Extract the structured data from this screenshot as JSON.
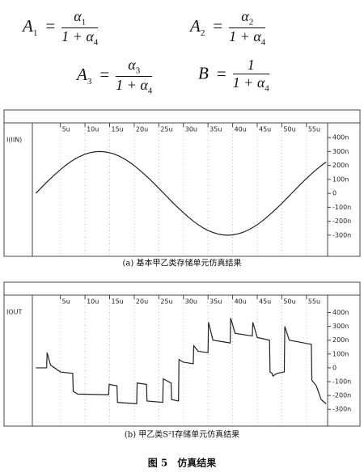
{
  "equations": [
    {
      "lhs": "A",
      "lhs_sub": "1",
      "relation": "=",
      "num": "α",
      "num_sub": "1",
      "den": "1 + α",
      "den_sub": "4"
    },
    {
      "lhs": "A",
      "lhs_sub": "2",
      "relation": "=",
      "num": "α",
      "num_sub": "2",
      "den": "1 + α",
      "den_sub": "4"
    },
    {
      "lhs": "A",
      "lhs_sub": "3",
      "relation": "=",
      "num": "α",
      "num_sub": "3",
      "den": "1 + α",
      "den_sub": "4"
    },
    {
      "lhs": "B",
      "relation": "=",
      "num": "1",
      "den": "1 + α",
      "den_sub": "4"
    }
  ],
  "chart_data": [
    {
      "type": "line",
      "caption": "(a) 基本甲乙类存储单元仿真结果",
      "x": [
        0,
        1,
        2,
        3,
        4,
        5,
        6,
        7,
        8,
        9,
        10,
        11,
        12,
        13,
        14,
        15,
        16,
        17,
        18,
        19,
        20,
        21,
        22,
        23,
        24,
        25,
        26,
        27,
        28,
        29,
        30,
        31,
        32,
        33,
        34,
        35,
        36,
        37,
        38,
        39,
        40,
        41,
        42,
        43,
        44,
        45,
        46,
        47,
        48,
        49,
        50,
        51,
        52,
        53,
        54,
        55,
        56,
        57,
        58,
        59
      ],
      "series": [
        {
          "name": "I(IIN)",
          "color": "#222222",
          "values": [
            0,
            36,
            72,
            106,
            139,
            170,
            199,
            225,
            247,
            266,
            281,
            291,
            298,
            300,
            298,
            291,
            281,
            266,
            247,
            225,
            199,
            170,
            139,
            106,
            72,
            36,
            0,
            -36,
            -72,
            -106,
            -139,
            -170,
            -199,
            -225,
            -247,
            -266,
            -281,
            -291,
            -298,
            -300,
            -298,
            -291,
            -281,
            -266,
            -247,
            -225,
            -199,
            -170,
            -139,
            -106,
            -72,
            -36,
            0,
            36,
            72,
            106,
            139,
            170,
            199,
            225
          ]
        }
      ],
      "xlim": [
        -0.7,
        59.3
      ],
      "xticks": [
        {
          "value": 5,
          "label": "5u"
        },
        {
          "value": 10,
          "label": "10u"
        },
        {
          "value": 15,
          "label": "15u"
        },
        {
          "value": 20,
          "label": "20u"
        },
        {
          "value": 25,
          "label": "25u"
        },
        {
          "value": 30,
          "label": "30u"
        },
        {
          "value": 35,
          "label": "35u"
        },
        {
          "value": 40,
          "label": "40u"
        },
        {
          "value": 45,
          "label": "45u"
        },
        {
          "value": 50,
          "label": "50u"
        },
        {
          "value": 55,
          "label": "55u"
        }
      ],
      "ylim": [
        -440,
        430
      ],
      "yticks": [
        {
          "value": 400,
          "label": "400n"
        },
        {
          "value": 300,
          "label": "300n"
        },
        {
          "value": 200,
          "label": "200n"
        },
        {
          "value": 100,
          "label": "100n"
        },
        0,
        {
          "value": -100,
          "label": "-100n"
        },
        {
          "value": -200,
          "label": "-200n"
        },
        {
          "value": -300,
          "label": "-300n"
        }
      ],
      "grid": true
    },
    {
      "type": "line",
      "caption": "(b) 甲乙类S²I存储单元仿真结果",
      "x": [
        0,
        2.2,
        2.3,
        3,
        5,
        7.5,
        7.6,
        8.5,
        14.8,
        14.9,
        16.5,
        16.6,
        20.5,
        20.6,
        22.5,
        22.6,
        25.8,
        25.9,
        27.5,
        27.6,
        29,
        29.1,
        30,
        32,
        32.1,
        33,
        35,
        35.1,
        36,
        39.5,
        39.6,
        40.5,
        44,
        44.1,
        45,
        47.5,
        47.6,
        48,
        48.2,
        49,
        50.5,
        50.6,
        51.5,
        56,
        56.1,
        57,
        58,
        59
      ],
      "series": [
        {
          "name": "IOUT",
          "color": "#222222",
          "values": [
            0,
            0,
            110,
            20,
            -30,
            -40,
            -170,
            -190,
            -195,
            -120,
            -130,
            -250,
            -260,
            -110,
            -120,
            -240,
            -250,
            -80,
            -110,
            -230,
            -240,
            60,
            40,
            30,
            160,
            120,
            110,
            330,
            200,
            180,
            360,
            250,
            230,
            330,
            220,
            200,
            -30,
            -40,
            -60,
            -40,
            -30,
            300,
            200,
            170,
            -90,
            -130,
            -230,
            -260
          ]
        }
      ],
      "xlim": [
        -0.7,
        59.3
      ],
      "xticks": [
        {
          "value": 5,
          "label": "5u"
        },
        {
          "value": 10,
          "label": "10u"
        },
        {
          "value": 15,
          "label": "15u"
        },
        {
          "value": 20,
          "label": "20u"
        },
        {
          "value": 25,
          "label": "25u"
        },
        {
          "value": 30,
          "label": "30u"
        },
        {
          "value": 35,
          "label": "35u"
        },
        {
          "value": 40,
          "label": "40u"
        },
        {
          "value": 45,
          "label": "45u"
        },
        {
          "value": 50,
          "label": "50u"
        },
        {
          "value": 55,
          "label": "55u"
        }
      ],
      "ylim": [
        -410,
        450
      ],
      "yticks": [
        {
          "value": 400,
          "label": "400n"
        },
        {
          "value": 300,
          "label": "300n"
        },
        {
          "value": 200,
          "label": "200n"
        },
        {
          "value": 100,
          "label": "100n"
        },
        0,
        {
          "value": -100,
          "label": "-100n"
        },
        {
          "value": -200,
          "label": "-200n"
        },
        {
          "value": -300,
          "label": "-300n"
        }
      ],
      "grid": true
    }
  ],
  "figure_caption": "图 5　仿真结果"
}
